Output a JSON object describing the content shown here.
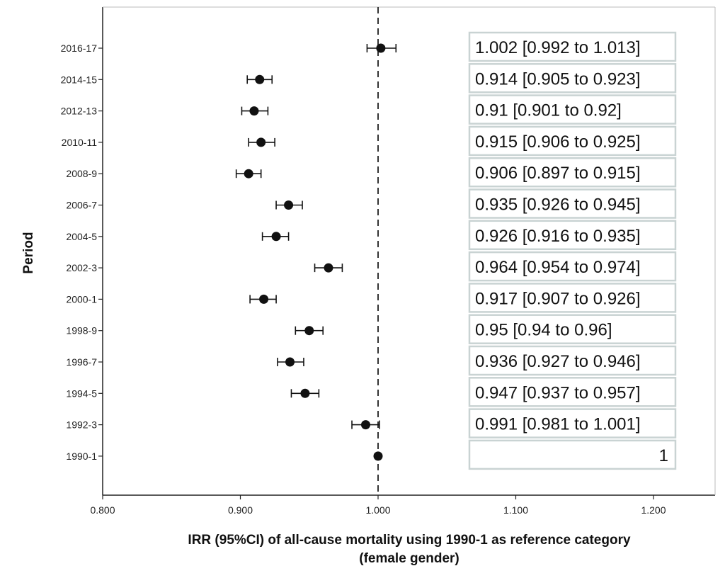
{
  "chart_data": {
    "type": "scatter",
    "subtype": "forest-plot",
    "xlabel_line1": "IRR (95%CI) of all-cause mortality using 1990-1 as reference category",
    "xlabel_line2": "(female gender)",
    "ylabel": "Period",
    "xlim": [
      0.8,
      1.24
    ],
    "x_ticks": [
      0.8,
      0.9,
      1.0,
      1.1,
      1.2
    ],
    "x_tick_labels": [
      "0.800",
      "0.900",
      "1.000",
      "1.100",
      "1.200"
    ],
    "reference_line_x": 1.0,
    "grid": false,
    "colors": {
      "point": "#111111",
      "table_border": "#c9d3d3",
      "axis": "#222222"
    },
    "rows": [
      {
        "period": "2016-17",
        "irr": 1.002,
        "lo": 0.992,
        "hi": 1.013,
        "label": "1.002 [0.992 to 1.013]"
      },
      {
        "period": "2014-15",
        "irr": 0.914,
        "lo": 0.905,
        "hi": 0.923,
        "label": "0.914 [0.905 to 0.923]"
      },
      {
        "period": "2012-13",
        "irr": 0.91,
        "lo": 0.901,
        "hi": 0.92,
        "label": "0.91 [0.901 to 0.92]"
      },
      {
        "period": "2010-11",
        "irr": 0.915,
        "lo": 0.906,
        "hi": 0.925,
        "label": "0.915 [0.906 to 0.925]"
      },
      {
        "period": "2008-9",
        "irr": 0.906,
        "lo": 0.897,
        "hi": 0.915,
        "label": "0.906 [0.897 to 0.915]"
      },
      {
        "period": "2006-7",
        "irr": 0.935,
        "lo": 0.926,
        "hi": 0.945,
        "label": "0.935 [0.926 to 0.945]"
      },
      {
        "period": "2004-5",
        "irr": 0.926,
        "lo": 0.916,
        "hi": 0.935,
        "label": "0.926 [0.916 to 0.935]"
      },
      {
        "period": "2002-3",
        "irr": 0.964,
        "lo": 0.954,
        "hi": 0.974,
        "label": "0.964 [0.954 to 0.974]"
      },
      {
        "period": "2000-1",
        "irr": 0.917,
        "lo": 0.907,
        "hi": 0.926,
        "label": "0.917 [0.907 to 0.926]"
      },
      {
        "period": "1998-9",
        "irr": 0.95,
        "lo": 0.94,
        "hi": 0.96,
        "label": "0.95 [0.94 to 0.96]"
      },
      {
        "period": "1996-7",
        "irr": 0.936,
        "lo": 0.927,
        "hi": 0.946,
        "label": "0.936 [0.927 to 0.946]"
      },
      {
        "period": "1994-5",
        "irr": 0.947,
        "lo": 0.937,
        "hi": 0.957,
        "label": "0.947 [0.937 to 0.957]"
      },
      {
        "period": "1992-3",
        "irr": 0.991,
        "lo": 0.981,
        "hi": 1.001,
        "label": "0.991 [0.981 to 1.001]"
      },
      {
        "period": "1990-1",
        "irr": 1,
        "lo": null,
        "hi": null,
        "label": "1"
      }
    ]
  }
}
